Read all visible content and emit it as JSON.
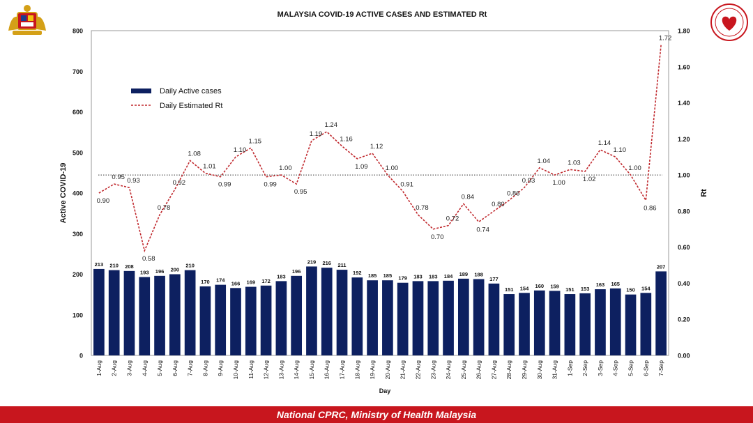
{
  "colors": {
    "bar": "#0d2060",
    "rt_line": "#c0282d",
    "footer_bg": "#c8161e",
    "threshold": "#333333"
  },
  "logos": {
    "left": "malaysia-coat-of-arms",
    "right": "ministry-of-health-badge"
  },
  "footer": {
    "text": "National CPRC, Ministry of Health Malaysia"
  },
  "chart_data": {
    "type": "bar",
    "title": "MALAYSIA COVID-19 ACTIVE CASES AND ESTIMATED  Rt",
    "xlabel": "Day",
    "ylabel": "Active COVID-19",
    "y2label": "Rt",
    "ylim": [
      0,
      800
    ],
    "y2lim": [
      0,
      1.8
    ],
    "yticks": [
      "0",
      "100",
      "200",
      "300",
      "400",
      "500",
      "600",
      "700",
      "800"
    ],
    "y2ticks": [
      "0.00",
      "0.20",
      "0.40",
      "0.60",
      "0.80",
      "1.00",
      "1.20",
      "1.40",
      "1.60",
      "1.80"
    ],
    "threshold_rt": 1.0,
    "legend_position": "top-left",
    "categories": [
      "1-Aug",
      "2-Aug",
      "3-Aug",
      "4-Aug",
      "5-Aug",
      "6-Aug",
      "7-Aug",
      "8-Aug",
      "9-Aug",
      "10-Aug",
      "11-Aug",
      "12-Aug",
      "13-Aug",
      "14-Aug",
      "15-Aug",
      "16-Aug",
      "17-Aug",
      "18-Aug",
      "19-Aug",
      "20-Aug",
      "21-Aug",
      "22-Aug",
      "23-Aug",
      "24-Aug",
      "25-Aug",
      "26-Aug",
      "27-Aug",
      "28-Aug",
      "29-Aug",
      "30-Aug",
      "31-Aug",
      "1-Sep",
      "2-Sep",
      "3-Sep",
      "4-Sep",
      "5-Sep",
      "6-Sep",
      "7-Sep"
    ],
    "series": [
      {
        "name": "Daily Active cases",
        "kind": "bar",
        "axis": "left",
        "values": [
          213,
          210,
          208,
          193,
          196,
          200,
          210,
          170,
          174,
          166,
          169,
          172,
          183,
          196,
          219,
          216,
          211,
          192,
          185,
          185,
          179,
          183,
          183,
          184,
          189,
          188,
          177,
          151,
          154,
          160,
          159,
          151,
          153,
          163,
          165,
          150,
          154,
          207
        ]
      },
      {
        "name": "Daily Estimated Rt",
        "kind": "line",
        "axis": "right",
        "values": [
          0.9,
          0.95,
          0.93,
          0.58,
          0.78,
          0.92,
          1.08,
          1.01,
          0.99,
          1.1,
          1.15,
          0.99,
          1.0,
          0.95,
          1.19,
          1.24,
          1.16,
          1.09,
          1.12,
          1.0,
          0.91,
          0.78,
          0.7,
          0.72,
          0.84,
          0.74,
          0.8,
          0.86,
          0.93,
          1.04,
          1.0,
          1.03,
          1.02,
          1.14,
          1.1,
          1.0,
          0.86,
          1.72
        ],
        "labels": [
          "0.90",
          "0.95",
          "0.93",
          "0.58",
          "0.78",
          "0.92",
          "1.08",
          "1.01",
          "0.99",
          "1.10",
          "1.15",
          "0.99",
          "1.00",
          "0.95",
          "1.19",
          "1.24",
          "1.16",
          "1.09",
          "1.12",
          "1.00",
          "0.91",
          "0.78",
          "0.70",
          "0.72",
          "0.84",
          "0.74",
          "0.80",
          "0.86",
          "0.93",
          "1.04",
          "1.00",
          "1.03",
          "1.02",
          "1.14",
          "1.10",
          "1.00",
          "0.86",
          "1.72"
        ]
      }
    ]
  }
}
